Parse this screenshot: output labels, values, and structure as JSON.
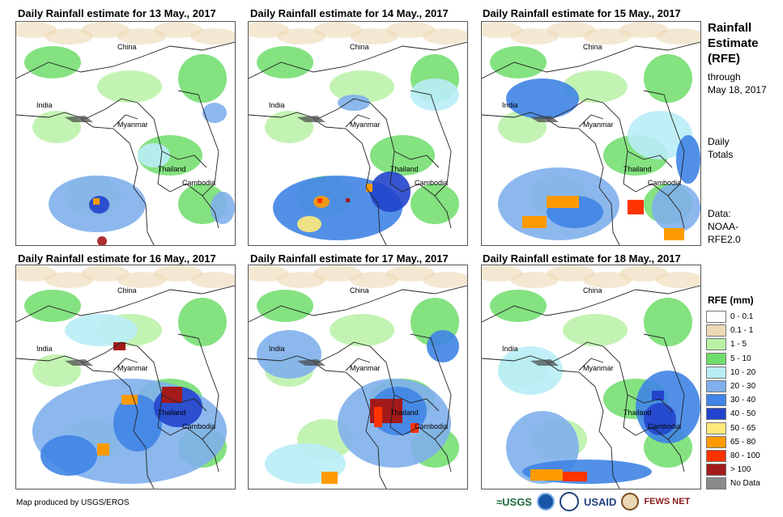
{
  "panels": [
    {
      "title": "Daily Rainfall estimate for 13 May., 2017"
    },
    {
      "title": "Daily Rainfall estimate for 14 May., 2017"
    },
    {
      "title": "Daily Rainfall estimate for 15 May., 2017"
    },
    {
      "title": "Daily Rainfall estimate for 16 May., 2017"
    },
    {
      "title": "Daily Rainfall estimate for 17 May., 2017"
    },
    {
      "title": "Daily Rainfall estimate for 18 May., 2017"
    }
  ],
  "places": {
    "china": "China",
    "india": "India",
    "myanmar": "Myanmar",
    "thailand": "Thailand",
    "cambodia": "Cambodia"
  },
  "sidebar": {
    "title_line1": "Rainfall",
    "title_line2": "Estimate",
    "title_line3": "(RFE)",
    "through": "through",
    "date": "May 18, 2017",
    "totals_line1": "Daily",
    "totals_line2": "Totals",
    "data_line1": "Data:",
    "data_line2": "NOAA-",
    "data_line3": "RFE2.0"
  },
  "legend": {
    "title": "RFE (mm)",
    "items": [
      {
        "label": "0 - 0.1",
        "color": "#ffffff"
      },
      {
        "label": "0.1 - 1",
        "color": "#ecd9b4"
      },
      {
        "label": "1 - 5",
        "color": "#b9f1a6"
      },
      {
        "label": "5 - 10",
        "color": "#6fdd6b"
      },
      {
        "label": "10 - 20",
        "color": "#b9edf6"
      },
      {
        "label": "20 - 30",
        "color": "#7fb0ec"
      },
      {
        "label": "30 - 40",
        "color": "#3f84e6"
      },
      {
        "label": "40 - 50",
        "color": "#2244cc"
      },
      {
        "label": "50 - 65",
        "color": "#ffe97a"
      },
      {
        "label": "65 - 80",
        "color": "#ff9a00"
      },
      {
        "label": "80 - 100",
        "color": "#ff3300"
      },
      {
        "label": "> 100",
        "color": "#a31a1a"
      },
      {
        "label": "No Data",
        "color": "#8a8a8a"
      }
    ]
  },
  "credit": "Map produced by USGS/EROS",
  "logos": {
    "usgs": "≈USGS",
    "usaid": "USAID",
    "fewsnet": "FEWS NET"
  }
}
